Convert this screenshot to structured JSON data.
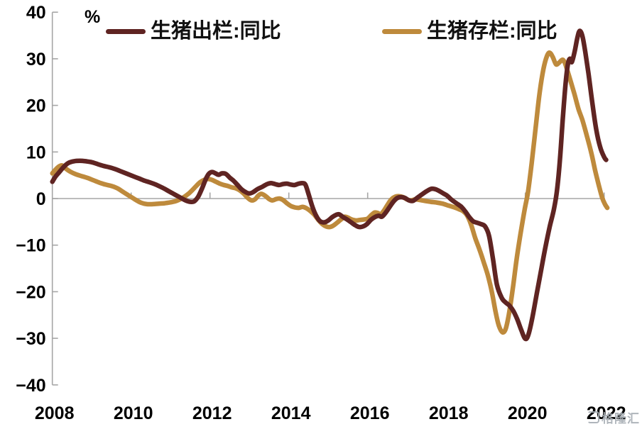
{
  "chart_data": {
    "type": "line",
    "title": "",
    "legend_position": "top",
    "grid": "zero-line-only",
    "y_axis": {
      "unit_label": "%",
      "min": -40,
      "max": 40,
      "tick_step": 10,
      "tick_labels": [
        "40",
        "30",
        "20",
        "10",
        "0",
        "−10",
        "−20",
        "−30",
        "−40"
      ],
      "tick_values": [
        40,
        30,
        20,
        10,
        0,
        -10,
        -20,
        -30,
        -40
      ]
    },
    "x_axis": {
      "min": 2008,
      "max": 2022.15,
      "tick_labels": [
        "2008",
        "2010",
        "2012",
        "2014",
        "2016",
        "2018",
        "2020",
        "2022"
      ],
      "tick_values": [
        2008,
        2010,
        2012,
        2014,
        2016,
        2018,
        2020,
        2022
      ]
    },
    "series": [
      {
        "name": "生猪出栏:同比",
        "color": "#5F2422",
        "points": [
          [
            2008.0,
            3.6
          ],
          [
            2008.08,
            4.7
          ],
          [
            2008.17,
            5.6
          ],
          [
            2008.28,
            6.7
          ],
          [
            2008.4,
            7.6
          ],
          [
            2008.55,
            8.0
          ],
          [
            2008.7,
            8.1
          ],
          [
            2008.85,
            8.0
          ],
          [
            2009.0,
            7.8
          ],
          [
            2009.15,
            7.4
          ],
          [
            2009.3,
            7.0
          ],
          [
            2009.45,
            6.7
          ],
          [
            2009.6,
            6.3
          ],
          [
            2009.75,
            5.8
          ],
          [
            2009.9,
            5.3
          ],
          [
            2010.05,
            4.8
          ],
          [
            2010.2,
            4.3
          ],
          [
            2010.35,
            3.8
          ],
          [
            2010.5,
            3.4
          ],
          [
            2010.65,
            2.9
          ],
          [
            2010.8,
            2.3
          ],
          [
            2010.95,
            1.6
          ],
          [
            2011.1,
            0.9
          ],
          [
            2011.25,
            0.2
          ],
          [
            2011.38,
            -0.4
          ],
          [
            2011.5,
            -0.7
          ],
          [
            2011.6,
            -0.6
          ],
          [
            2011.7,
            0.4
          ],
          [
            2011.8,
            2.2
          ],
          [
            2011.9,
            4.3
          ],
          [
            2011.98,
            5.4
          ],
          [
            2012.06,
            5.7
          ],
          [
            2012.14,
            5.4
          ],
          [
            2012.22,
            5.1
          ],
          [
            2012.3,
            5.4
          ],
          [
            2012.4,
            5.3
          ],
          [
            2012.5,
            4.5
          ],
          [
            2012.6,
            3.8
          ],
          [
            2012.7,
            2.9
          ],
          [
            2012.8,
            2.0
          ],
          [
            2012.9,
            1.4
          ],
          [
            2013.0,
            1.1
          ],
          [
            2013.1,
            1.4
          ],
          [
            2013.2,
            2.0
          ],
          [
            2013.32,
            2.5
          ],
          [
            2013.45,
            3.1
          ],
          [
            2013.55,
            3.3
          ],
          [
            2013.65,
            3.1
          ],
          [
            2013.75,
            2.9
          ],
          [
            2013.85,
            3.1
          ],
          [
            2013.95,
            3.2
          ],
          [
            2014.05,
            3.0
          ],
          [
            2014.15,
            2.9
          ],
          [
            2014.25,
            3.2
          ],
          [
            2014.35,
            3.3
          ],
          [
            2014.42,
            3.0
          ],
          [
            2014.5,
            1.0
          ],
          [
            2014.6,
            -1.8
          ],
          [
            2014.7,
            -3.8
          ],
          [
            2014.8,
            -4.9
          ],
          [
            2014.9,
            -5.1
          ],
          [
            2015.0,
            -4.7
          ],
          [
            2015.1,
            -4.0
          ],
          [
            2015.2,
            -3.5
          ],
          [
            2015.28,
            -3.4
          ],
          [
            2015.38,
            -4.0
          ],
          [
            2015.48,
            -4.5
          ],
          [
            2015.58,
            -5.1
          ],
          [
            2015.68,
            -5.7
          ],
          [
            2015.78,
            -6.1
          ],
          [
            2015.88,
            -6.0
          ],
          [
            2015.98,
            -5.5
          ],
          [
            2016.08,
            -4.6
          ],
          [
            2016.18,
            -4.0
          ],
          [
            2016.28,
            -3.7
          ],
          [
            2016.36,
            -3.9
          ],
          [
            2016.45,
            -3.1
          ],
          [
            2016.55,
            -1.9
          ],
          [
            2016.65,
            -0.7
          ],
          [
            2016.75,
            0.1
          ],
          [
            2016.85,
            0.3
          ],
          [
            2016.95,
            0.1
          ],
          [
            2017.05,
            -0.4
          ],
          [
            2017.15,
            -0.5
          ],
          [
            2017.25,
            0.1
          ],
          [
            2017.38,
            0.9
          ],
          [
            2017.5,
            1.6
          ],
          [
            2017.62,
            2.1
          ],
          [
            2017.72,
            2.0
          ],
          [
            2017.82,
            1.6
          ],
          [
            2017.92,
            1.1
          ],
          [
            2018.02,
            0.6
          ],
          [
            2018.12,
            -0.2
          ],
          [
            2018.25,
            -1.0
          ],
          [
            2018.38,
            -1.8
          ],
          [
            2018.48,
            -2.8
          ],
          [
            2018.58,
            -4.0
          ],
          [
            2018.68,
            -4.9
          ],
          [
            2018.78,
            -5.2
          ],
          [
            2018.88,
            -5.5
          ],
          [
            2018.98,
            -6.0
          ],
          [
            2019.08,
            -8.0
          ],
          [
            2019.18,
            -13.0
          ],
          [
            2019.28,
            -18.5
          ],
          [
            2019.4,
            -21.3
          ],
          [
            2019.5,
            -22.3
          ],
          [
            2019.6,
            -23.0
          ],
          [
            2019.7,
            -24.2
          ],
          [
            2019.8,
            -26.0
          ],
          [
            2019.9,
            -28.3
          ],
          [
            2020.0,
            -30.1
          ],
          [
            2020.08,
            -29.2
          ],
          [
            2020.18,
            -25.5
          ],
          [
            2020.3,
            -20.0
          ],
          [
            2020.42,
            -14.5
          ],
          [
            2020.52,
            -10.0
          ],
          [
            2020.62,
            -6.0
          ],
          [
            2020.72,
            -2.5
          ],
          [
            2020.8,
            1.5
          ],
          [
            2020.88,
            8.5
          ],
          [
            2020.95,
            17.0
          ],
          [
            2021.02,
            24.5
          ],
          [
            2021.08,
            28.8
          ],
          [
            2021.13,
            30.0
          ],
          [
            2021.18,
            29.3
          ],
          [
            2021.25,
            31.5
          ],
          [
            2021.32,
            34.5
          ],
          [
            2021.38,
            36.0
          ],
          [
            2021.45,
            34.8
          ],
          [
            2021.52,
            31.5
          ],
          [
            2021.6,
            27.0
          ],
          [
            2021.7,
            20.5
          ],
          [
            2021.8,
            14.8
          ],
          [
            2021.9,
            11.0
          ],
          [
            2022.0,
            8.9
          ],
          [
            2022.05,
            8.3
          ]
        ]
      },
      {
        "name": "生猪存栏:同比",
        "color": "#BE8A3C",
        "points": [
          [
            2008.0,
            5.4
          ],
          [
            2008.08,
            6.2
          ],
          [
            2008.17,
            6.9
          ],
          [
            2008.25,
            7.1
          ],
          [
            2008.33,
            6.5
          ],
          [
            2008.45,
            5.8
          ],
          [
            2008.6,
            5.2
          ],
          [
            2008.75,
            4.8
          ],
          [
            2008.9,
            4.4
          ],
          [
            2009.05,
            3.9
          ],
          [
            2009.2,
            3.4
          ],
          [
            2009.35,
            3.0
          ],
          [
            2009.5,
            2.7
          ],
          [
            2009.65,
            2.2
          ],
          [
            2009.8,
            1.4
          ],
          [
            2009.95,
            0.6
          ],
          [
            2010.1,
            -0.2
          ],
          [
            2010.25,
            -0.9
          ],
          [
            2010.4,
            -1.2
          ],
          [
            2010.55,
            -1.2
          ],
          [
            2010.7,
            -1.1
          ],
          [
            2010.85,
            -1.0
          ],
          [
            2011.0,
            -0.8
          ],
          [
            2011.15,
            -0.5
          ],
          [
            2011.3,
            0.1
          ],
          [
            2011.45,
            1.0
          ],
          [
            2011.55,
            1.8
          ],
          [
            2011.65,
            2.7
          ],
          [
            2011.75,
            3.5
          ],
          [
            2011.85,
            4.0
          ],
          [
            2011.95,
            4.2
          ],
          [
            2012.05,
            4.0
          ],
          [
            2012.15,
            3.6
          ],
          [
            2012.25,
            3.2
          ],
          [
            2012.35,
            2.9
          ],
          [
            2012.45,
            2.7
          ],
          [
            2012.55,
            2.4
          ],
          [
            2012.65,
            2.2
          ],
          [
            2012.75,
            1.8
          ],
          [
            2012.85,
            1.1
          ],
          [
            2012.95,
            0.2
          ],
          [
            2013.05,
            -0.4
          ],
          [
            2013.15,
            -0.1
          ],
          [
            2013.22,
            0.6
          ],
          [
            2013.3,
            1.0
          ],
          [
            2013.4,
            0.6
          ],
          [
            2013.5,
            -0.1
          ],
          [
            2013.58,
            -0.4
          ],
          [
            2013.68,
            -0.1
          ],
          [
            2013.76,
            0.0
          ],
          [
            2013.85,
            -0.3
          ],
          [
            2013.95,
            -1.0
          ],
          [
            2014.05,
            -1.6
          ],
          [
            2014.15,
            -1.9
          ],
          [
            2014.25,
            -2.0
          ],
          [
            2014.35,
            -1.8
          ],
          [
            2014.45,
            -2.1
          ],
          [
            2014.55,
            -2.7
          ],
          [
            2014.65,
            -3.5
          ],
          [
            2014.75,
            -4.6
          ],
          [
            2014.85,
            -5.5
          ],
          [
            2014.95,
            -6.0
          ],
          [
            2015.05,
            -6.1
          ],
          [
            2015.15,
            -5.7
          ],
          [
            2015.25,
            -5.0
          ],
          [
            2015.35,
            -4.3
          ],
          [
            2015.42,
            -3.9
          ],
          [
            2015.5,
            -4.1
          ],
          [
            2015.6,
            -4.5
          ],
          [
            2015.7,
            -4.7
          ],
          [
            2015.8,
            -4.6
          ],
          [
            2015.9,
            -4.5
          ],
          [
            2016.0,
            -4.3
          ],
          [
            2016.1,
            -3.5
          ],
          [
            2016.18,
            -3.0
          ],
          [
            2016.26,
            -3.1
          ],
          [
            2016.33,
            -3.4
          ],
          [
            2016.42,
            -2.5
          ],
          [
            2016.5,
            -1.4
          ],
          [
            2016.6,
            -0.2
          ],
          [
            2016.7,
            0.4
          ],
          [
            2016.8,
            0.5
          ],
          [
            2016.9,
            0.3
          ],
          [
            2017.0,
            -0.2
          ],
          [
            2017.1,
            -0.4
          ],
          [
            2017.2,
            -0.2
          ],
          [
            2017.32,
            -0.3
          ],
          [
            2017.45,
            -0.5
          ],
          [
            2017.6,
            -0.7
          ],
          [
            2017.75,
            -0.85
          ],
          [
            2017.9,
            -1.1
          ],
          [
            2018.05,
            -1.5
          ],
          [
            2018.2,
            -1.9
          ],
          [
            2018.32,
            -2.3
          ],
          [
            2018.42,
            -2.7
          ],
          [
            2018.52,
            -3.6
          ],
          [
            2018.62,
            -5.5
          ],
          [
            2018.73,
            -8.5
          ],
          [
            2018.84,
            -11.0
          ],
          [
            2018.95,
            -13.8
          ],
          [
            2019.05,
            -16.5
          ],
          [
            2019.15,
            -20.0
          ],
          [
            2019.25,
            -24.5
          ],
          [
            2019.33,
            -27.3
          ],
          [
            2019.42,
            -28.7
          ],
          [
            2019.5,
            -28.0
          ],
          [
            2019.58,
            -25.0
          ],
          [
            2019.68,
            -19.5
          ],
          [
            2019.78,
            -13.0
          ],
          [
            2019.88,
            -7.5
          ],
          [
            2019.98,
            -2.5
          ],
          [
            2020.07,
            1.5
          ],
          [
            2020.16,
            7.5
          ],
          [
            2020.26,
            15.0
          ],
          [
            2020.36,
            22.5
          ],
          [
            2020.46,
            27.8
          ],
          [
            2020.55,
            30.6
          ],
          [
            2020.62,
            31.3
          ],
          [
            2020.7,
            30.3
          ],
          [
            2020.78,
            28.8
          ],
          [
            2020.86,
            29.2
          ],
          [
            2020.94,
            29.8
          ],
          [
            2021.0,
            29.2
          ],
          [
            2021.07,
            27.4
          ],
          [
            2021.15,
            25.2
          ],
          [
            2021.25,
            22.3
          ],
          [
            2021.35,
            19.2
          ],
          [
            2021.45,
            16.8
          ],
          [
            2021.57,
            13.2
          ],
          [
            2021.68,
            9.6
          ],
          [
            2021.77,
            6.1
          ],
          [
            2021.86,
            3.0
          ],
          [
            2021.95,
            0.2
          ],
          [
            2022.02,
            -1.2
          ],
          [
            2022.08,
            -2.0
          ]
        ]
      }
    ]
  },
  "watermark": {
    "text": "格隆汇"
  },
  "colors": {
    "axis": "#A6A6A6",
    "tick_text": "#000000",
    "background": "#FFFFFF",
    "watermark": "#A7AEB4"
  }
}
